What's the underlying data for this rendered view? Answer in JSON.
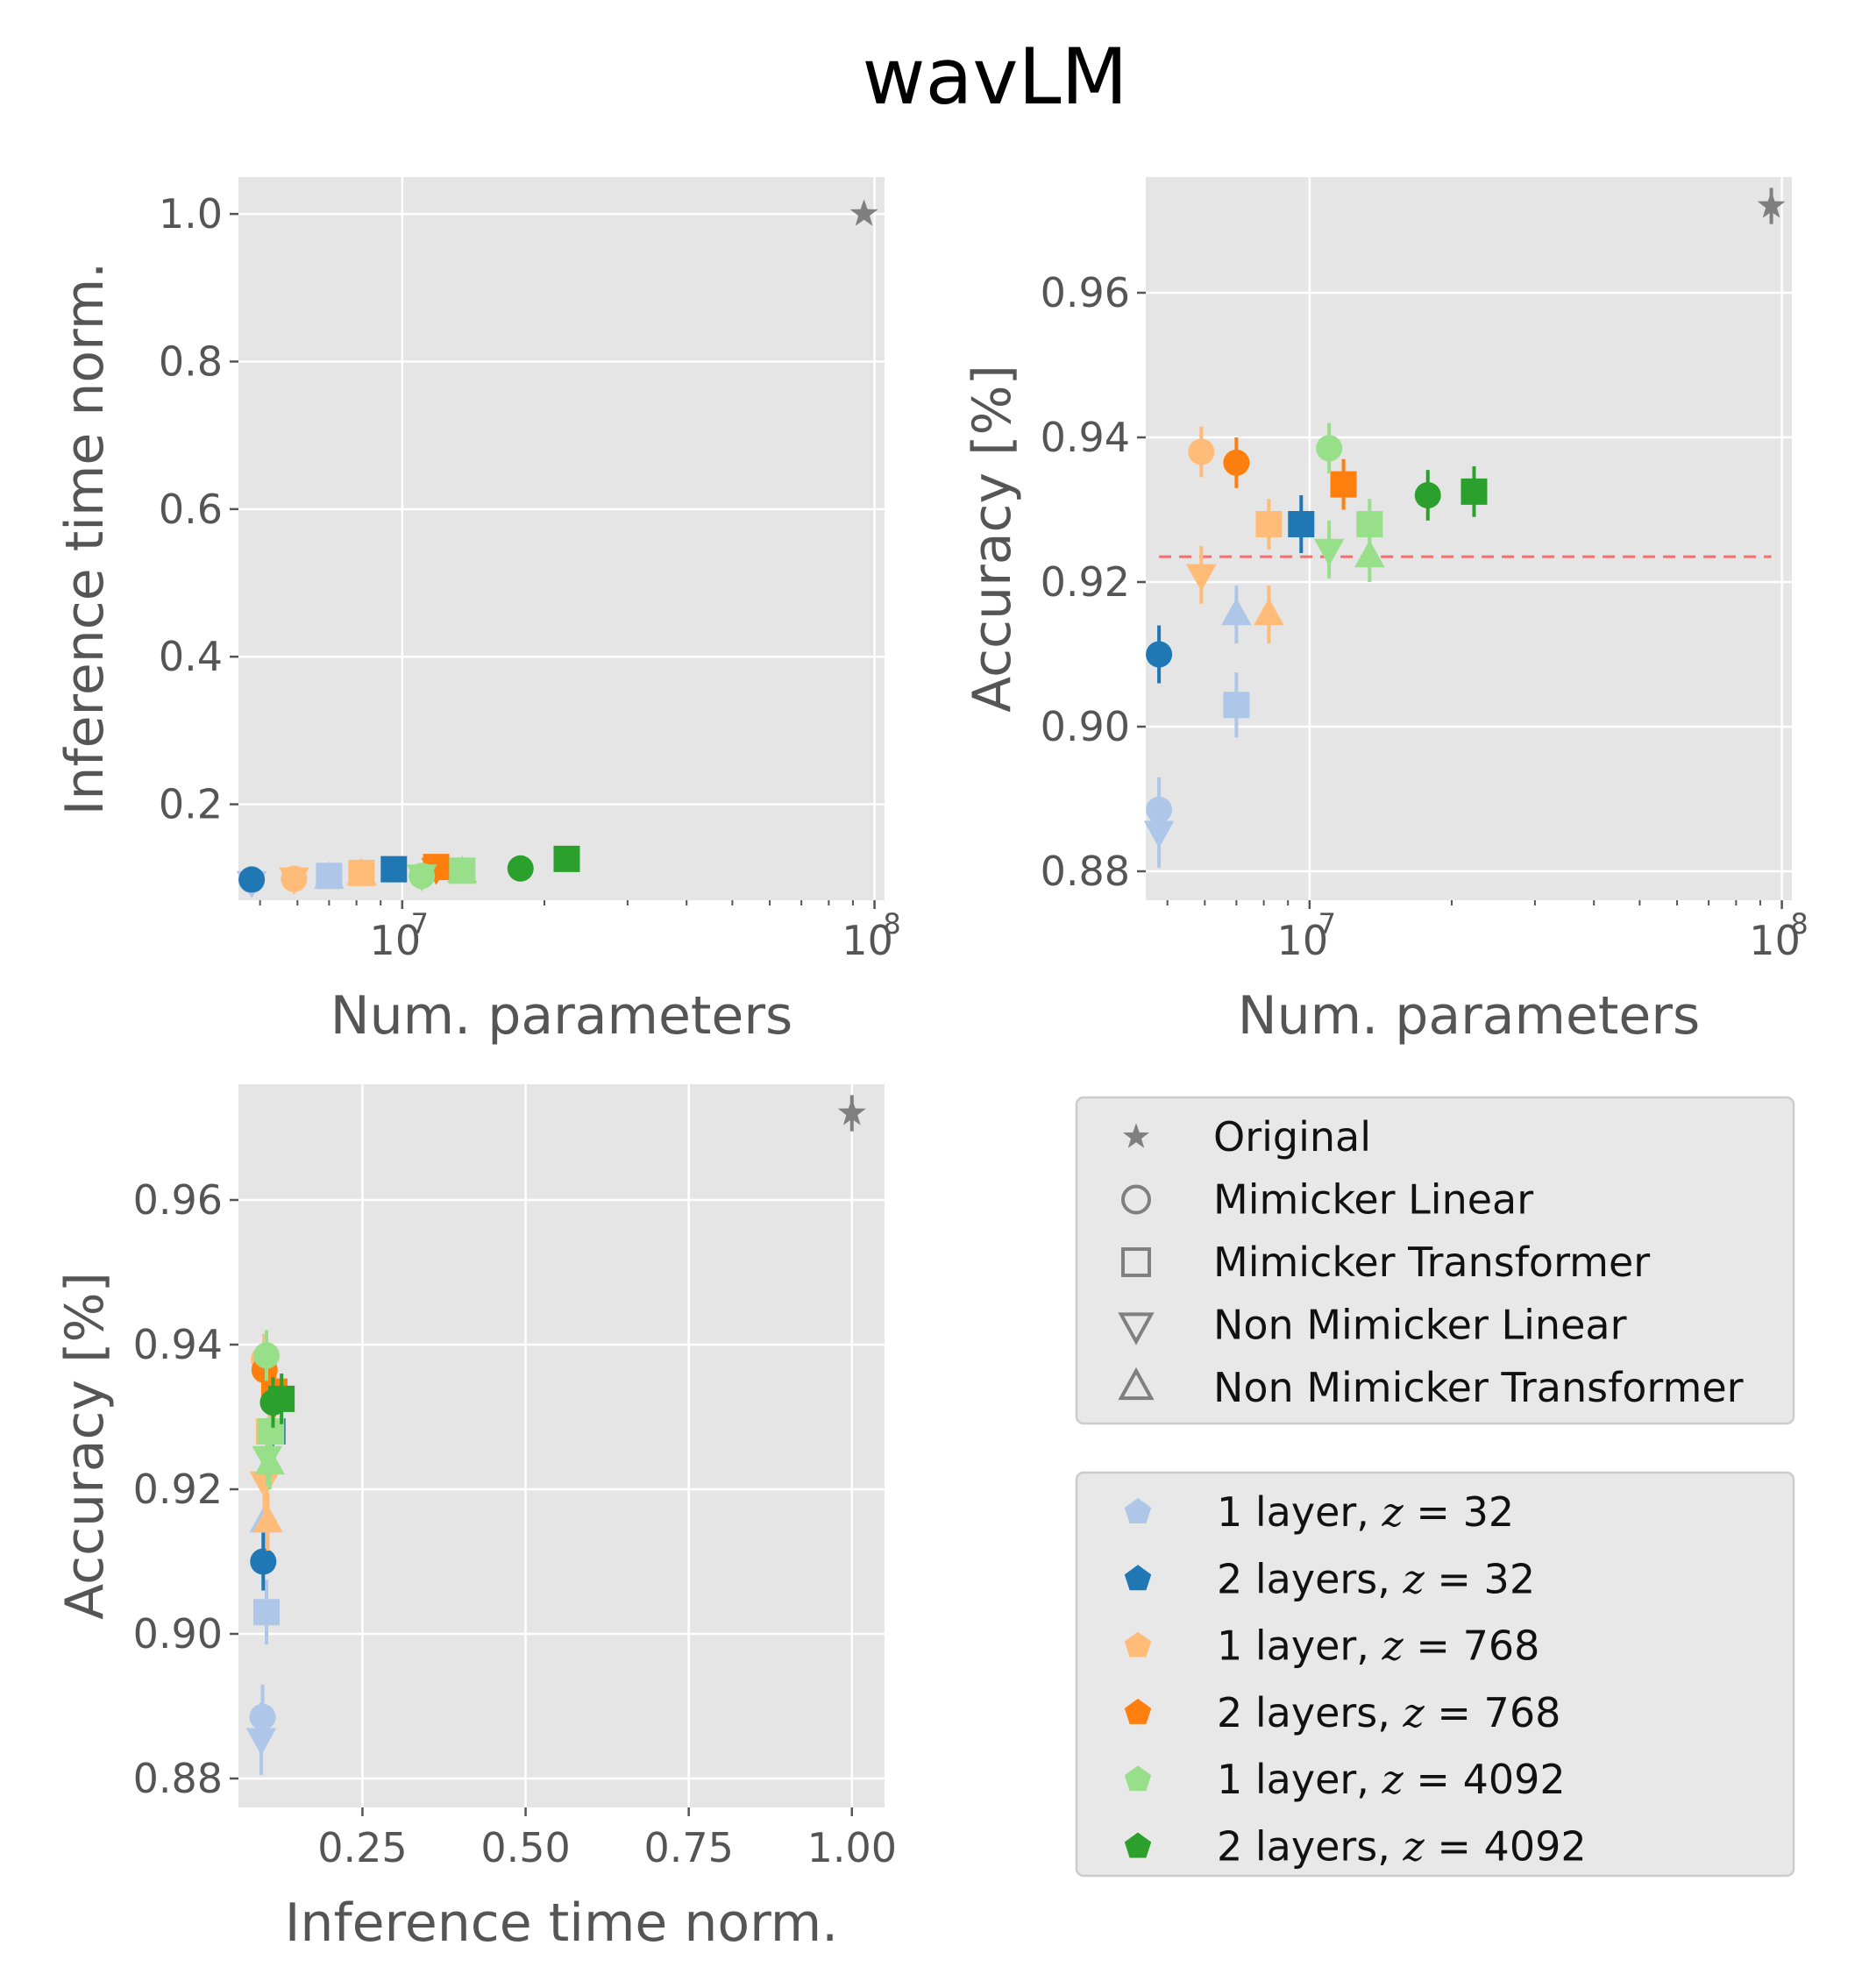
{
  "title": "wavLM",
  "colors": {
    "orig": "#7f7f7f",
    "c1_32": "#aec7e8",
    "c2_32": "#1f77b4",
    "c1_768": "#ffbb78",
    "c2_768": "#ff7f0e",
    "c1_4092": "#98df8a",
    "c2_4092": "#2ca02c",
    "ref_line": "#f07070",
    "axes_bg": "#e5e5e5",
    "grid": "#ffffff"
  },
  "legend_markers": {
    "items": [
      {
        "marker": "star",
        "label": "Original"
      },
      {
        "marker": "circle",
        "label": "Mimicker Linear"
      },
      {
        "marker": "square",
        "label": "Mimicker Transformer"
      },
      {
        "marker": "triangle-down",
        "label": "Non Mimicker Linear"
      },
      {
        "marker": "triangle-up",
        "label": "Non Mimicker Transformer"
      }
    ]
  },
  "legend_colors": {
    "items": [
      {
        "color_key": "c1_32",
        "prefix": "1 layer, ",
        "var": "z",
        "value": " = 32"
      },
      {
        "color_key": "c2_32",
        "prefix": "2 layers, ",
        "var": "z",
        "value": " = 32"
      },
      {
        "color_key": "c1_768",
        "prefix": "1 layer, ",
        "var": "z",
        "value": " = 768"
      },
      {
        "color_key": "c2_768",
        "prefix": "2 layers, ",
        "var": "z",
        "value": " = 768"
      },
      {
        "color_key": "c1_4092",
        "prefix": "1 layer, ",
        "var": "z",
        "value": " = 4092"
      },
      {
        "color_key": "c2_4092",
        "prefix": "2 layers, ",
        "var": "z",
        "value": " = 4092"
      }
    ]
  },
  "chart_data": [
    {
      "id": "params-vs-time",
      "type": "scatter",
      "xlabel": "Num. parameters",
      "ylabel": "Inference time norm.",
      "xscale": "log",
      "xlim": [
        4500000,
        105000000
      ],
      "ylim": [
        0.07,
        1.05
      ],
      "xticks": [
        {
          "base": "10",
          "exp": "7",
          "value": 10000000
        },
        {
          "base": "10",
          "exp": "8",
          "value": 100000000
        }
      ],
      "yticks": [
        "0.2",
        "0.4",
        "0.6",
        "0.8",
        "1.0"
      ],
      "grid": true,
      "points": [
        {
          "marker": "star",
          "color_key": "orig",
          "x": 95000000,
          "y": 1.0
        },
        {
          "marker": "triangle-down",
          "color_key": "c1_32",
          "x": 4800000,
          "y": 0.095
        },
        {
          "marker": "circle",
          "color_key": "c1_32",
          "x": 4800000,
          "y": 0.097
        },
        {
          "marker": "triangle-up",
          "color_key": "c1_32",
          "x": 7000000,
          "y": 0.1
        },
        {
          "marker": "square",
          "color_key": "c1_32",
          "x": 7000000,
          "y": 0.103
        },
        {
          "marker": "circle",
          "color_key": "c2_32",
          "x": 4800000,
          "y": 0.098
        },
        {
          "marker": "square",
          "color_key": "c2_32",
          "x": 9600000,
          "y": 0.112
        },
        {
          "marker": "triangle-down",
          "color_key": "c1_768",
          "x": 5900000,
          "y": 0.1
        },
        {
          "marker": "circle",
          "color_key": "c1_768",
          "x": 5900000,
          "y": 0.099
        },
        {
          "marker": "triangle-up",
          "color_key": "c1_768",
          "x": 8200000,
          "y": 0.105
        },
        {
          "marker": "square",
          "color_key": "c1_768",
          "x": 8200000,
          "y": 0.107
        },
        {
          "marker": "triangle-down",
          "color_key": "c2_768",
          "x": 11800000,
          "y": 0.113
        },
        {
          "marker": "square",
          "color_key": "c2_768",
          "x": 11800000,
          "y": 0.115
        },
        {
          "marker": "triangle-down",
          "color_key": "c1_4092",
          "x": 11000000,
          "y": 0.104
        },
        {
          "marker": "circle",
          "color_key": "c1_4092",
          "x": 11000000,
          "y": 0.103
        },
        {
          "marker": "triangle-up",
          "color_key": "c1_4092",
          "x": 13400000,
          "y": 0.108
        },
        {
          "marker": "square",
          "color_key": "c1_4092",
          "x": 13400000,
          "y": 0.11
        },
        {
          "marker": "circle",
          "color_key": "c2_4092",
          "x": 17800000,
          "y": 0.113
        },
        {
          "marker": "square",
          "color_key": "c2_4092",
          "x": 22300000,
          "y": 0.126
        }
      ]
    },
    {
      "id": "params-vs-acc",
      "type": "scatter",
      "xlabel": "Num. parameters",
      "ylabel": "Accuracy [%]",
      "xscale": "log",
      "xlim": [
        4500000,
        105000000
      ],
      "ylim": [
        0.876,
        0.976
      ],
      "xticks": [
        {
          "base": "10",
          "exp": "7",
          "value": 10000000
        },
        {
          "base": "10",
          "exp": "8",
          "value": 100000000
        }
      ],
      "yticks": [
        "0.88",
        "0.90",
        "0.92",
        "0.94",
        "0.96"
      ],
      "grid": true,
      "reference_line": {
        "y": 0.9235,
        "x_from": 4800000,
        "x_to": 95000000
      },
      "points": [
        {
          "marker": "star",
          "color_key": "orig",
          "x": 95000000,
          "y": 0.972,
          "err": 0.0025
        },
        {
          "marker": "circle",
          "color_key": "c1_32",
          "x": 4800000,
          "y": 0.8885,
          "err": 0.0045
        },
        {
          "marker": "triangle-down",
          "color_key": "c1_32",
          "x": 4800000,
          "y": 0.8855,
          "err": 0.005
        },
        {
          "marker": "square",
          "color_key": "c1_32",
          "x": 7000000,
          "y": 0.903,
          "err": 0.0045
        },
        {
          "marker": "triangle-up",
          "color_key": "c1_32",
          "x": 7000000,
          "y": 0.9155,
          "err": 0.004
        },
        {
          "marker": "circle",
          "color_key": "c2_32",
          "x": 4800000,
          "y": 0.91,
          "err": 0.004
        },
        {
          "marker": "square",
          "color_key": "c2_32",
          "x": 9600000,
          "y": 0.928,
          "err": 0.004
        },
        {
          "marker": "circle",
          "color_key": "c1_768",
          "x": 5900000,
          "y": 0.938,
          "err": 0.0035
        },
        {
          "marker": "triangle-down",
          "color_key": "c1_768",
          "x": 5900000,
          "y": 0.921,
          "err": 0.004
        },
        {
          "marker": "square",
          "color_key": "c1_768",
          "x": 8200000,
          "y": 0.928,
          "err": 0.0035
        },
        {
          "marker": "triangle-up",
          "color_key": "c1_768",
          "x": 8200000,
          "y": 0.9155,
          "err": 0.004
        },
        {
          "marker": "circle",
          "color_key": "c2_768",
          "x": 7000000,
          "y": 0.9365,
          "err": 0.0035
        },
        {
          "marker": "square",
          "color_key": "c2_768",
          "x": 11800000,
          "y": 0.9335,
          "err": 0.0035
        },
        {
          "marker": "circle",
          "color_key": "c1_4092",
          "x": 11000000,
          "y": 0.9385,
          "err": 0.0035
        },
        {
          "marker": "triangle-down",
          "color_key": "c1_4092",
          "x": 11000000,
          "y": 0.9245,
          "err": 0.004
        },
        {
          "marker": "square",
          "color_key": "c1_4092",
          "x": 13400000,
          "y": 0.928,
          "err": 0.0035
        },
        {
          "marker": "triangle-up",
          "color_key": "c1_4092",
          "x": 13400000,
          "y": 0.9235,
          "err": 0.0035
        },
        {
          "marker": "circle",
          "color_key": "c2_4092",
          "x": 17800000,
          "y": 0.932,
          "err": 0.0035
        },
        {
          "marker": "square",
          "color_key": "c2_4092",
          "x": 22300000,
          "y": 0.9325,
          "err": 0.0035
        }
      ]
    },
    {
      "id": "time-vs-acc",
      "type": "scatter",
      "xlabel": "Inference time norm.",
      "ylabel": "Accuracy [%]",
      "xscale": "linear",
      "xlim": [
        0.06,
        1.05
      ],
      "ylim": [
        0.876,
        0.976
      ],
      "xticks": [
        {
          "label": "0.25",
          "value": 0.25
        },
        {
          "label": "0.50",
          "value": 0.5
        },
        {
          "label": "0.75",
          "value": 0.75
        },
        {
          "label": "1.00",
          "value": 1.0
        }
      ],
      "yticks": [
        "0.88",
        "0.90",
        "0.92",
        "0.94",
        "0.96"
      ],
      "grid": true,
      "points": [
        {
          "marker": "star",
          "color_key": "orig",
          "x": 1.0,
          "y": 0.972,
          "err": 0.0025
        },
        {
          "marker": "circle",
          "color_key": "c1_32",
          "x": 0.097,
          "y": 0.8885,
          "err": 0.0045
        },
        {
          "marker": "triangle-down",
          "color_key": "c1_32",
          "x": 0.095,
          "y": 0.8855,
          "err": 0.005
        },
        {
          "marker": "square",
          "color_key": "c1_32",
          "x": 0.103,
          "y": 0.903,
          "err": 0.0045
        },
        {
          "marker": "triangle-up",
          "color_key": "c1_32",
          "x": 0.1,
          "y": 0.9155,
          "err": 0.004
        },
        {
          "marker": "circle",
          "color_key": "c2_32",
          "x": 0.098,
          "y": 0.91,
          "err": 0.004
        },
        {
          "marker": "square",
          "color_key": "c2_32",
          "x": 0.112,
          "y": 0.928,
          "err": 0.004
        },
        {
          "marker": "circle",
          "color_key": "c1_768",
          "x": 0.099,
          "y": 0.938,
          "err": 0.0035
        },
        {
          "marker": "triangle-down",
          "color_key": "c1_768",
          "x": 0.1,
          "y": 0.921,
          "err": 0.004
        },
        {
          "marker": "square",
          "color_key": "c1_768",
          "x": 0.107,
          "y": 0.928,
          "err": 0.0035
        },
        {
          "marker": "triangle-up",
          "color_key": "c1_768",
          "x": 0.105,
          "y": 0.9155,
          "err": 0.004
        },
        {
          "marker": "circle",
          "color_key": "c2_768",
          "x": 0.1,
          "y": 0.9365,
          "err": 0.0035
        },
        {
          "marker": "square",
          "color_key": "c2_768",
          "x": 0.115,
          "y": 0.9335,
          "err": 0.0035
        },
        {
          "marker": "circle",
          "color_key": "c1_4092",
          "x": 0.103,
          "y": 0.9385,
          "err": 0.0035
        },
        {
          "marker": "triangle-down",
          "color_key": "c1_4092",
          "x": 0.104,
          "y": 0.9245,
          "err": 0.004
        },
        {
          "marker": "square",
          "color_key": "c1_4092",
          "x": 0.11,
          "y": 0.928,
          "err": 0.0035
        },
        {
          "marker": "triangle-up",
          "color_key": "c1_4092",
          "x": 0.108,
          "y": 0.9235,
          "err": 0.0035
        },
        {
          "marker": "circle",
          "color_key": "c2_4092",
          "x": 0.113,
          "y": 0.932,
          "err": 0.0035
        },
        {
          "marker": "square",
          "color_key": "c2_4092",
          "x": 0.126,
          "y": 0.9325,
          "err": 0.0035
        }
      ]
    }
  ]
}
